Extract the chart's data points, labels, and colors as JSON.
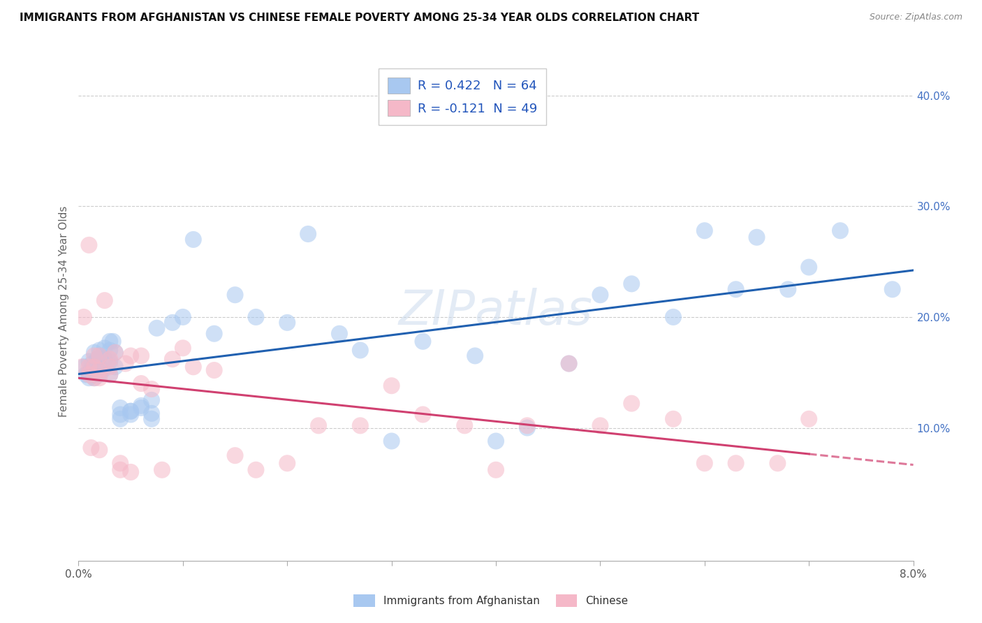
{
  "title": "IMMIGRANTS FROM AFGHANISTAN VS CHINESE FEMALE POVERTY AMONG 25-34 YEAR OLDS CORRELATION CHART",
  "source": "Source: ZipAtlas.com",
  "ylabel": "Female Poverty Among 25-34 Year Olds",
  "right_yticks": [
    0.1,
    0.2,
    0.3,
    0.4
  ],
  "right_yticklabels": [
    "10.0%",
    "20.0%",
    "30.0%",
    "40.0%"
  ],
  "xmin": 0.0,
  "xmax": 0.08,
  "ymin": -0.02,
  "ymax": 0.43,
  "legend_r1": "R = 0.422",
  "legend_n1": "N = 64",
  "legend_r2": "R = -0.121",
  "legend_n2": "N = 49",
  "legend_label1": "Immigrants from Afghanistan",
  "legend_label2": "Chinese",
  "color_blue": "#a8c8f0",
  "color_pink": "#f5b8c8",
  "line_blue": "#2060b0",
  "line_pink": "#d04070",
  "watermark": "ZIPatlas",
  "afghanistan_x": [
    0.0005,
    0.0007,
    0.001,
    0.001,
    0.001,
    0.0012,
    0.0013,
    0.0015,
    0.0015,
    0.0015,
    0.0018,
    0.002,
    0.002,
    0.002,
    0.002,
    0.0022,
    0.0023,
    0.0025,
    0.0025,
    0.003,
    0.003,
    0.003,
    0.003,
    0.0033,
    0.0035,
    0.0035,
    0.004,
    0.004,
    0.004,
    0.005,
    0.005,
    0.005,
    0.006,
    0.006,
    0.007,
    0.007,
    0.007,
    0.0075,
    0.009,
    0.01,
    0.011,
    0.013,
    0.015,
    0.017,
    0.02,
    0.022,
    0.025,
    0.027,
    0.03,
    0.033,
    0.038,
    0.04,
    0.043,
    0.047,
    0.05,
    0.053,
    0.057,
    0.06,
    0.063,
    0.065,
    0.068,
    0.07,
    0.073,
    0.078
  ],
  "afghanistan_y": [
    0.155,
    0.148,
    0.16,
    0.15,
    0.145,
    0.152,
    0.158,
    0.168,
    0.155,
    0.145,
    0.162,
    0.17,
    0.165,
    0.155,
    0.148,
    0.16,
    0.152,
    0.172,
    0.162,
    0.178,
    0.17,
    0.16,
    0.148,
    0.178,
    0.168,
    0.155,
    0.112,
    0.108,
    0.118,
    0.115,
    0.115,
    0.112,
    0.12,
    0.118,
    0.125,
    0.113,
    0.108,
    0.19,
    0.195,
    0.2,
    0.27,
    0.185,
    0.22,
    0.2,
    0.195,
    0.275,
    0.185,
    0.17,
    0.088,
    0.178,
    0.165,
    0.088,
    0.1,
    0.158,
    0.22,
    0.23,
    0.2,
    0.278,
    0.225,
    0.272,
    0.225,
    0.245,
    0.278,
    0.225
  ],
  "chinese_x": [
    0.0003,
    0.0005,
    0.001,
    0.001,
    0.001,
    0.0012,
    0.0015,
    0.0015,
    0.0015,
    0.002,
    0.002,
    0.002,
    0.002,
    0.0025,
    0.003,
    0.003,
    0.003,
    0.0035,
    0.004,
    0.004,
    0.0045,
    0.005,
    0.005,
    0.006,
    0.006,
    0.007,
    0.008,
    0.009,
    0.01,
    0.011,
    0.013,
    0.015,
    0.017,
    0.02,
    0.023,
    0.027,
    0.03,
    0.033,
    0.037,
    0.04,
    0.043,
    0.047,
    0.05,
    0.053,
    0.057,
    0.06,
    0.063,
    0.067,
    0.07
  ],
  "chinese_y": [
    0.155,
    0.2,
    0.265,
    0.155,
    0.148,
    0.082,
    0.165,
    0.155,
    0.145,
    0.165,
    0.152,
    0.145,
    0.08,
    0.215,
    0.162,
    0.155,
    0.148,
    0.168,
    0.062,
    0.068,
    0.158,
    0.165,
    0.06,
    0.165,
    0.14,
    0.135,
    0.062,
    0.162,
    0.172,
    0.155,
    0.152,
    0.075,
    0.062,
    0.068,
    0.102,
    0.102,
    0.138,
    0.112,
    0.102,
    0.062,
    0.102,
    0.158,
    0.102,
    0.122,
    0.108,
    0.068,
    0.068,
    0.068,
    0.108
  ]
}
